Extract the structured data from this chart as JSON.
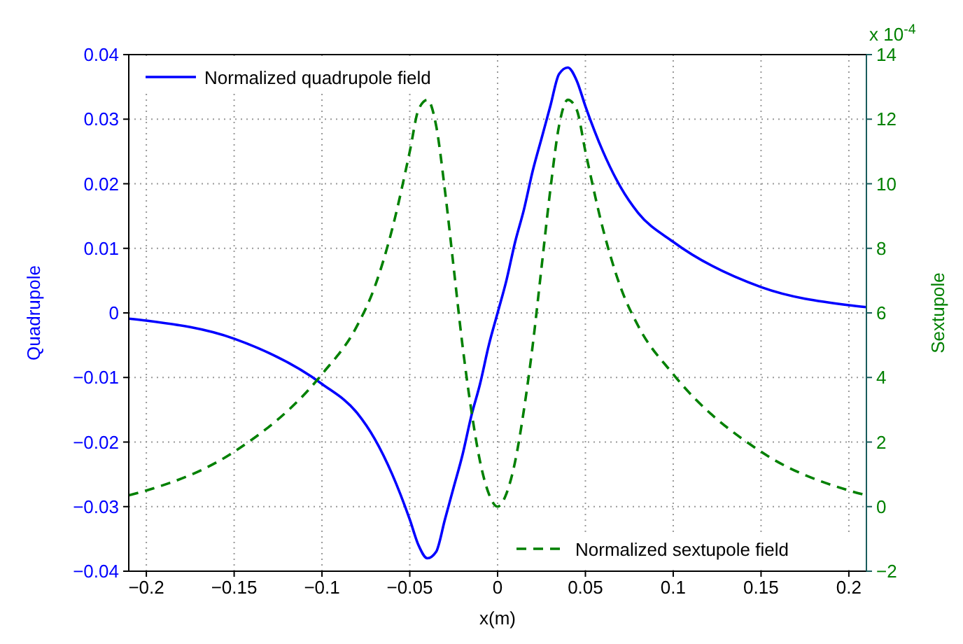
{
  "chart_data": {
    "type": "line",
    "xlabel": "x(m)",
    "ylabel": "Quadrupole",
    "y2label": "Sextupole",
    "x": [
      -0.21,
      -0.2,
      -0.15,
      -0.1,
      -0.08,
      -0.07,
      -0.06,
      -0.05,
      -0.045,
      -0.04,
      -0.035,
      -0.03,
      -0.025,
      -0.02,
      -0.015,
      -0.01,
      -0.005,
      0,
      0.005,
      0.01,
      0.015,
      0.02,
      0.025,
      0.03,
      0.035,
      0.04,
      0.045,
      0.05,
      0.06,
      0.07,
      0.08,
      0.1,
      0.15,
      0.2,
      0.21
    ],
    "series": [
      {
        "name": "Normalized quadrupole field",
        "color": "#0000ff",
        "line_style": "solid",
        "values": [
          -0.0009,
          -0.0012,
          -0.004,
          -0.011,
          -0.0155,
          -0.0195,
          -0.025,
          -0.032,
          -0.036,
          -0.038,
          -0.037,
          -0.032,
          -0.027,
          -0.022,
          -0.016,
          -0.011,
          -0.005,
          0,
          0.005,
          0.011,
          0.016,
          0.022,
          0.027,
          0.032,
          0.037,
          0.038,
          0.036,
          0.032,
          0.025,
          0.0195,
          0.0155,
          0.011,
          0.004,
          0.0012,
          0.0009
        ]
      },
      {
        "name": "Normalized sextupole field",
        "color": "#008000",
        "line_style": "dashed",
        "axis": "y2",
        "values": [
          0.35,
          0.5,
          1.7,
          4.1,
          5.6,
          6.8,
          8.6,
          11,
          12.3,
          12.6,
          11.8,
          9.8,
          7.4,
          5,
          3,
          1.4,
          0.4,
          0,
          0.4,
          1.4,
          3,
          5,
          7.4,
          9.8,
          11.8,
          12.6,
          12.3,
          11,
          8.6,
          6.8,
          5.6,
          4.1,
          1.7,
          0.5,
          0.35
        ]
      }
    ],
    "xlim": [
      -0.21,
      0.21
    ],
    "xticks": [
      -0.2,
      -0.15,
      -0.1,
      -0.05,
      0,
      0.05,
      0.1,
      0.15,
      0.2
    ],
    "ylim": [
      -0.04,
      0.04
    ],
    "yticks": [
      -0.04,
      -0.03,
      -0.02,
      -0.01,
      0,
      0.01,
      0.02,
      0.03,
      0.04
    ],
    "y2lim": [
      -2,
      14
    ],
    "y2ticks": [
      -2,
      0,
      2,
      4,
      6,
      8,
      10,
      12,
      14
    ],
    "annotations": [
      "x 10$^{-4}$"
    ],
    "grid": true,
    "legend": [
      "top left",
      "bottom right"
    ],
    "marker": "none"
  }
}
